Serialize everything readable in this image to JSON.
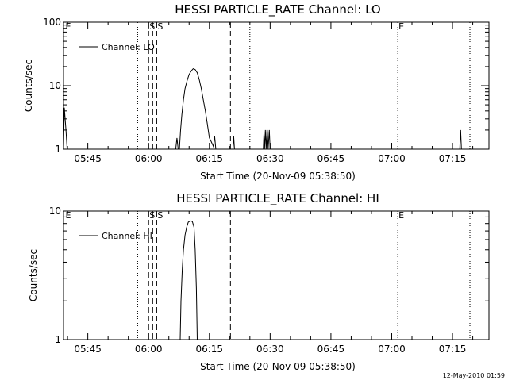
{
  "chart_data": [
    {
      "type": "line",
      "title": "HESSI PARTICLE_RATE Channel: LO",
      "xlabel": "Start Time (20-Nov-09 05:38:50)",
      "ylabel": "Counts/sec",
      "x_tick_labels": [
        "05:45",
        "06:00",
        "06:15",
        "06:30",
        "06:45",
        "07:00",
        "07:15"
      ],
      "x_tick_minutes": [
        345,
        360,
        375,
        390,
        405,
        420,
        435
      ],
      "xlim_minutes": [
        339,
        444
      ],
      "ylog": true,
      "ylim": [
        1,
        100
      ],
      "y_tick_labels": [
        "1",
        "10",
        "100"
      ],
      "y_tick_values": [
        1,
        10,
        100
      ],
      "legend": {
        "label": "Channel: LO",
        "placement": "top-left"
      },
      "dotted_lines_minutes": [
        385.0,
        357.3,
        421.5,
        439.3
      ],
      "dashed_lines_minutes": [
        360.0,
        361.0,
        362.0,
        380.2
      ],
      "markers": [
        {
          "text": "E",
          "x": 339.3
        },
        {
          "text": "S",
          "x": 360.0
        },
        {
          "text": "S",
          "x": 362.0
        },
        {
          "text": "E",
          "x": 421.5
        }
      ],
      "series": [
        {
          "points": [
            [
              339.0,
              1
            ],
            [
              339.2,
              4.5
            ],
            [
              339.6,
              2
            ],
            [
              339.9,
              1
            ],
            [
              366.7,
              1
            ],
            [
              367,
              1.5
            ],
            [
              367.3,
              1
            ],
            [
              367.6,
              1
            ],
            [
              367.9,
              2
            ],
            [
              368.2,
              3.5
            ],
            [
              368.6,
              6
            ],
            [
              369,
              9
            ],
            [
              369.5,
              12
            ],
            [
              370,
              15
            ],
            [
              370.5,
              17
            ],
            [
              371,
              18.5
            ],
            [
              371.5,
              18
            ],
            [
              372,
              16
            ],
            [
              372.5,
              12.5
            ],
            [
              373,
              9
            ],
            [
              373.5,
              6
            ],
            [
              374,
              4
            ],
            [
              374.5,
              2.5
            ],
            [
              375,
              1.5
            ],
            [
              375.5,
              1.3
            ],
            [
              376,
              1.1
            ],
            [
              376.3,
              1.6
            ],
            [
              376.6,
              1
            ],
            [
              380.8,
              1
            ],
            [
              381,
              1.6
            ],
            [
              381.2,
              1
            ],
            [
              388.3,
              1
            ],
            [
              388.5,
              2
            ],
            [
              388.7,
              1
            ],
            [
              388.9,
              2
            ],
            [
              389.1,
              1
            ],
            [
              389.3,
              2
            ],
            [
              389.5,
              1
            ],
            [
              389.8,
              2
            ],
            [
              390,
              1
            ],
            [
              436.8,
              1
            ],
            [
              437,
              2
            ],
            [
              437.2,
              1
            ]
          ]
        }
      ]
    },
    {
      "type": "line",
      "title": "HESSI PARTICLE_RATE Channel: HI",
      "xlabel": "Start Time (20-Nov-09 05:38:50)",
      "ylabel": "Counts/sec",
      "x_tick_labels": [
        "05:45",
        "06:00",
        "06:15",
        "06:30",
        "06:45",
        "07:00",
        "07:15"
      ],
      "x_tick_minutes": [
        345,
        360,
        375,
        390,
        405,
        420,
        435
      ],
      "xlim_minutes": [
        339,
        444
      ],
      "ylog": true,
      "ylim": [
        1,
        10
      ],
      "y_tick_labels": [
        "1",
        "10"
      ],
      "y_tick_values": [
        1,
        10
      ],
      "legend": {
        "label": "Channel: HI",
        "placement": "top-left"
      },
      "dotted_lines_minutes": [
        357.3,
        421.5,
        439.3
      ],
      "dashed_lines_minutes": [
        360.0,
        361.0,
        362.0,
        380.2
      ],
      "markers": [
        {
          "text": "E",
          "x": 339.3
        },
        {
          "text": "S",
          "x": 360.0
        },
        {
          "text": "S",
          "x": 362.0
        },
        {
          "text": "E",
          "x": 421.5
        }
      ],
      "series": [
        {
          "points": [
            [
              367.8,
              1
            ],
            [
              368,
              2
            ],
            [
              368.3,
              3.5
            ],
            [
              368.6,
              5
            ],
            [
              369,
              6.5
            ],
            [
              369.4,
              7.5
            ],
            [
              369.8,
              8.2
            ],
            [
              370.3,
              8.4
            ],
            [
              370.8,
              8.3
            ],
            [
              371.2,
              7.5
            ],
            [
              371.5,
              5
            ],
            [
              371.8,
              2.5
            ],
            [
              372,
              1
            ]
          ]
        }
      ]
    }
  ],
  "footer": {
    "date_stamp": "12-May-2010 01:59"
  }
}
